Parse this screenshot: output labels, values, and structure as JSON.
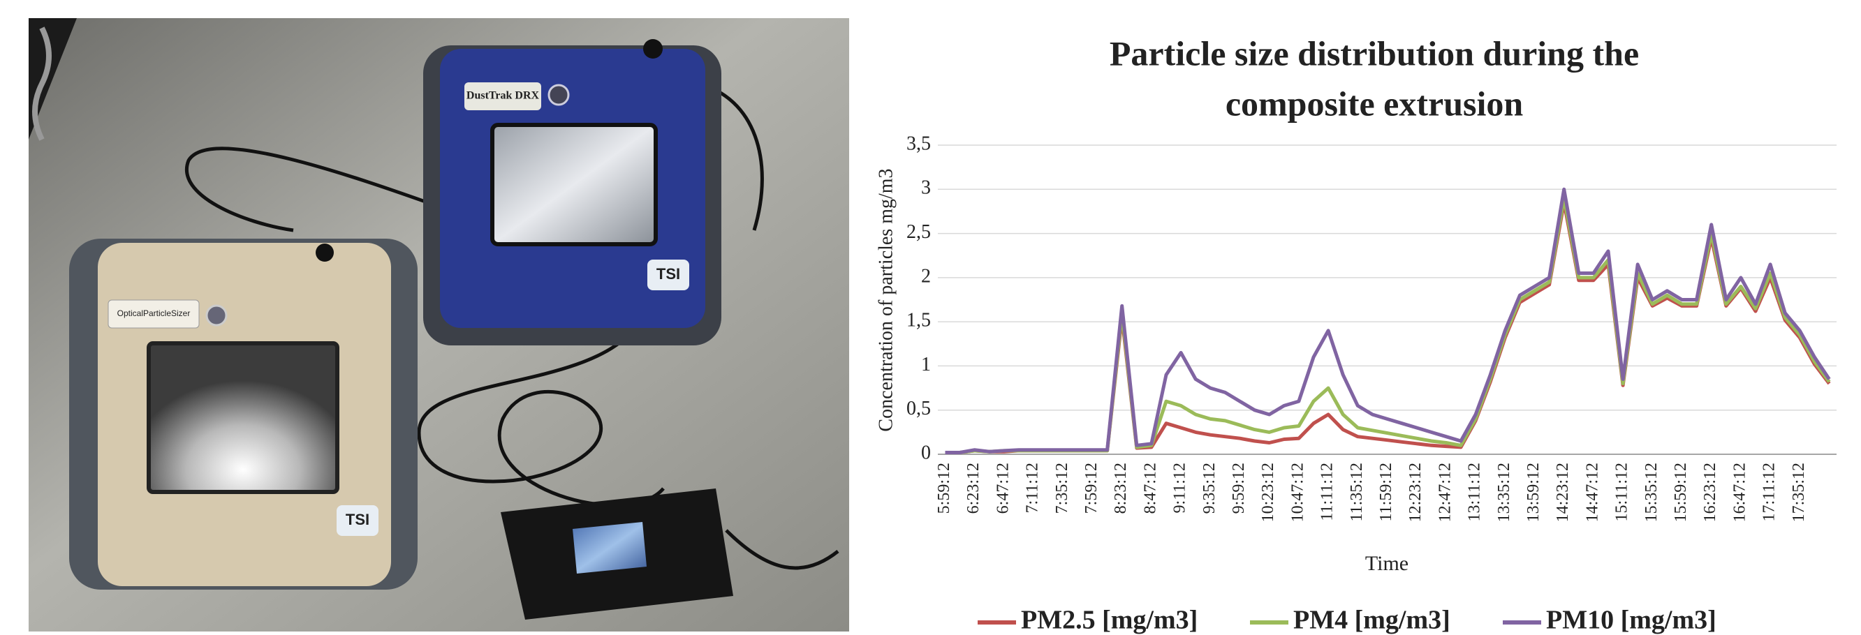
{
  "photo": {
    "labels": [
      "DustTrak DRX",
      "OpticalParticleSizer",
      "TSI",
      "TSI"
    ]
  },
  "chart_data": {
    "type": "line",
    "title": "Particle size distribution during the composite extrusion",
    "x_label": "Time",
    "y_label": "Concentration of particles mg/m3",
    "categories": [
      "5:59:12",
      null,
      "6:23:12",
      null,
      "6:47:12",
      null,
      "7:11:12",
      null,
      "7:35:12",
      null,
      "7:59:12",
      null,
      "8:23:12",
      null,
      "8:47:12",
      null,
      "9:11:12",
      null,
      "9:35:12",
      null,
      "9:59:12",
      null,
      "10:23:12",
      null,
      "10:47:12",
      null,
      "11:11:12",
      null,
      "11:35:12",
      null,
      "11:59:12",
      null,
      "12:23:12",
      null,
      "12:47:12",
      null,
      "13:11:12",
      null,
      "13:35:12",
      null,
      "13:59:12",
      null,
      "14:23:12",
      null,
      "14:47:12",
      null,
      "15:11:12",
      null,
      "15:35:12",
      null,
      "15:59:12",
      null,
      "16:23:12",
      null,
      "16:47:12",
      null,
      "17:11:12",
      null,
      "17:35:12",
      null,
      null
    ],
    "series": [
      {
        "name": "PM2.5 [mg/m3]",
        "color": "#c0504d",
        "values": [
          0.02,
          0.02,
          0.04,
          0.03,
          0.03,
          0.04,
          0.04,
          0.04,
          0.04,
          0.04,
          0.04,
          0.04,
          1.55,
          0.07,
          0.08,
          0.35,
          0.3,
          0.25,
          0.22,
          0.2,
          0.18,
          0.15,
          0.13,
          0.17,
          0.18,
          0.35,
          0.45,
          0.28,
          0.2,
          0.18,
          0.16,
          0.14,
          0.12,
          0.1,
          0.09,
          0.08,
          0.38,
          0.82,
          1.32,
          1.72,
          1.82,
          1.92,
          2.85,
          1.97,
          1.97,
          2.15,
          0.78,
          2.0,
          1.68,
          1.77,
          1.68,
          1.68,
          2.45,
          1.68,
          1.88,
          1.62,
          2.0,
          1.52,
          1.32,
          1.02,
          0.8
        ]
      },
      {
        "name": "PM4 [mg/m3]",
        "color": "#9bbb59",
        "values": [
          0.02,
          0.02,
          0.04,
          0.03,
          0.04,
          0.04,
          0.04,
          0.04,
          0.04,
          0.04,
          0.04,
          0.04,
          1.6,
          0.08,
          0.1,
          0.6,
          0.55,
          0.45,
          0.4,
          0.38,
          0.33,
          0.28,
          0.25,
          0.3,
          0.32,
          0.6,
          0.75,
          0.45,
          0.3,
          0.27,
          0.24,
          0.21,
          0.18,
          0.15,
          0.13,
          0.1,
          0.4,
          0.85,
          1.35,
          1.75,
          1.85,
          1.95,
          2.9,
          2.0,
          2.0,
          2.2,
          0.8,
          2.05,
          1.7,
          1.8,
          1.7,
          1.7,
          2.5,
          1.7,
          1.9,
          1.65,
          2.05,
          1.55,
          1.35,
          1.05,
          0.82
        ]
      },
      {
        "name": "PM10 [mg/m3]",
        "color": "#8064a2",
        "values": [
          0.02,
          0.02,
          0.05,
          0.03,
          0.04,
          0.05,
          0.05,
          0.05,
          0.05,
          0.05,
          0.05,
          0.05,
          1.68,
          0.1,
          0.12,
          0.9,
          1.15,
          0.85,
          0.75,
          0.7,
          0.6,
          0.5,
          0.45,
          0.55,
          0.6,
          1.1,
          1.4,
          0.9,
          0.55,
          0.45,
          0.4,
          0.35,
          0.3,
          0.25,
          0.2,
          0.15,
          0.45,
          0.9,
          1.4,
          1.8,
          1.9,
          2.0,
          3.0,
          2.05,
          2.05,
          2.3,
          0.85,
          2.15,
          1.75,
          1.85,
          1.75,
          1.75,
          2.6,
          1.75,
          2.0,
          1.7,
          2.15,
          1.6,
          1.4,
          1.1,
          0.85
        ]
      }
    ],
    "ylim": [
      0,
      3.5
    ],
    "yticks": [
      0,
      {
        "value": 0.5,
        "label": "0,5"
      },
      1,
      {
        "value": 1.5,
        "label": "1,5"
      },
      2,
      {
        "value": 2.5,
        "label": "2,5"
      },
      3,
      {
        "value": 3.5,
        "label": "3,5"
      }
    ],
    "grid": true,
    "legend": "bottom"
  }
}
